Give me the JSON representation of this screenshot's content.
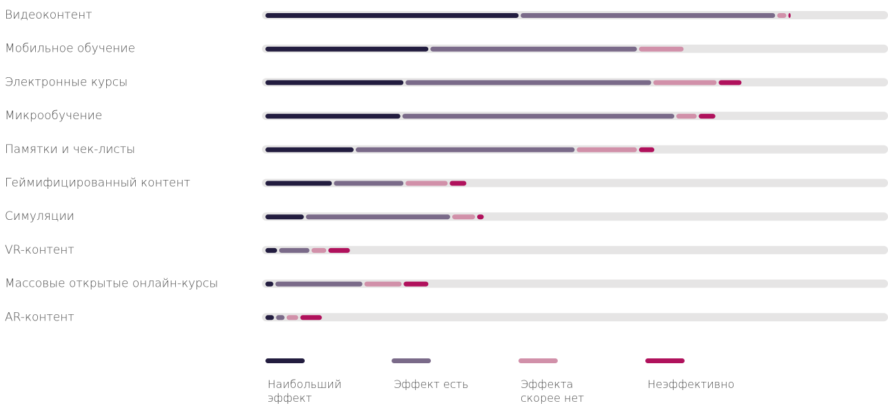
{
  "chart_data": {
    "type": "stacked-bar-horizontal",
    "categories": [
      "Видеоконтент",
      "Мобильное обучение",
      "Электронные курсы",
      "Микрообучение",
      "Памятки и чек-листы",
      "Геймифицированный контент",
      "Симуляции",
      "VR-контент",
      "Массовые открытые онлайн-курсы",
      "AR-контент"
    ],
    "series": [
      {
        "name": "Наибольший эффект",
        "color": "#221c3f",
        "values": [
          41,
          26.5,
          22.5,
          22,
          14.5,
          11,
          6.5,
          2.2,
          1.6,
          1.7
        ]
      },
      {
        "name": "Эффект есть",
        "color": "#7a6a89",
        "values": [
          41.2,
          33.5,
          39.8,
          44,
          35.5,
          11.5,
          23.5,
          5.2,
          14.3,
          1.7
        ]
      },
      {
        "name": "Эффекта скорее нет",
        "color": "#d190a9",
        "values": [
          1.8,
          7.5,
          10.5,
          3.6,
          10,
          7.1,
          4,
          2.7,
          6.3,
          2.2
        ]
      },
      {
        "name": "Неэффективно",
        "color": "#b0115c",
        "values": [
          0.7,
          0,
          4,
          3,
          2.8,
          3,
          1.4,
          3.8,
          4.3,
          3.8
        ]
      }
    ],
    "xlim": [
      0,
      100
    ]
  }
}
